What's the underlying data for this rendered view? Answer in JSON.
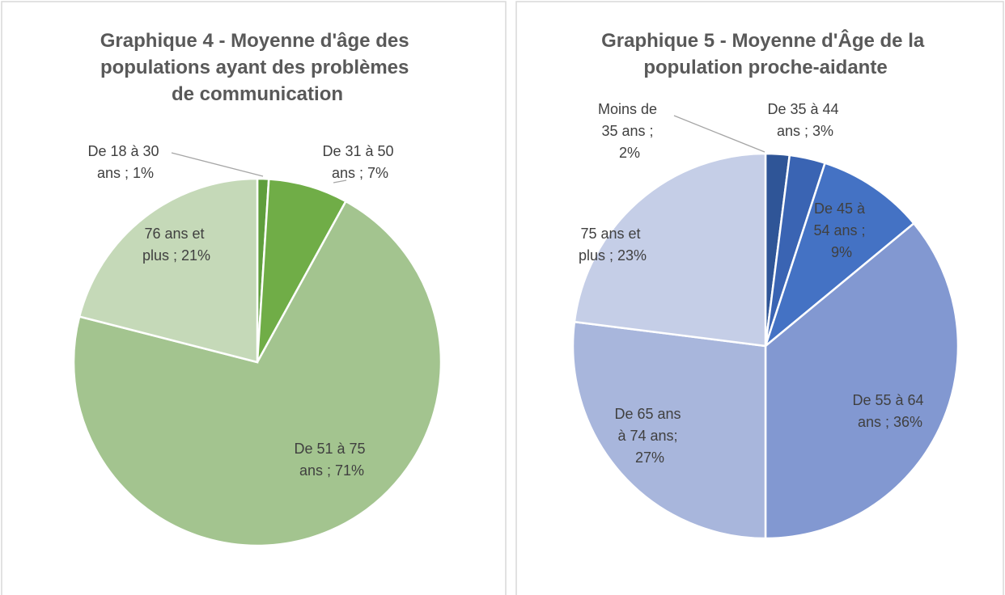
{
  "chart_data": [
    {
      "type": "pie",
      "title": "Graphique 4 - Moyenne d'âge des populations ayant des problèmes de communication",
      "categories": [
        "De 18 à 30 ans",
        "De 31 à 50 ans",
        "De 51 à 75 ans",
        "76 ans et plus"
      ],
      "values": [
        1,
        7,
        71,
        21
      ],
      "value_labels": [
        "De 18 à 30 ans ; 1%",
        "De 31 à 50 ans ; 7%",
        "De 51 à 75 ans ; 71%",
        "76 ans et plus ; 21%"
      ],
      "colors": [
        "#5f9e3c",
        "#70ad47",
        "#a3c48f",
        "#c5d9b8"
      ]
    },
    {
      "type": "pie",
      "title": "Graphique 5 - Moyenne d'Âge de la population proche-aidante",
      "categories": [
        "Moins de 35 ans",
        "De 35 à 44 ans",
        "De 45 à 54 ans",
        "De 55 à 64 ans",
        "De 65 ans à 74 ans",
        "75 ans et plus"
      ],
      "values": [
        2,
        3,
        9,
        36,
        27,
        23
      ],
      "value_labels": [
        "Moins de 35 ans ; 2%",
        "De 35 à 44 ans ; 3%",
        "De 45 à 54 ans ; 9%",
        "De 55 à 64 ans ; 36%",
        "De 65 ans à 74 ans; 27%",
        "75 ans et plus ; 23%"
      ],
      "colors": [
        "#2f5597",
        "#3a64b3",
        "#4472c4",
        "#8298d1",
        "#a8b6dc",
        "#c5cee7"
      ]
    }
  ]
}
